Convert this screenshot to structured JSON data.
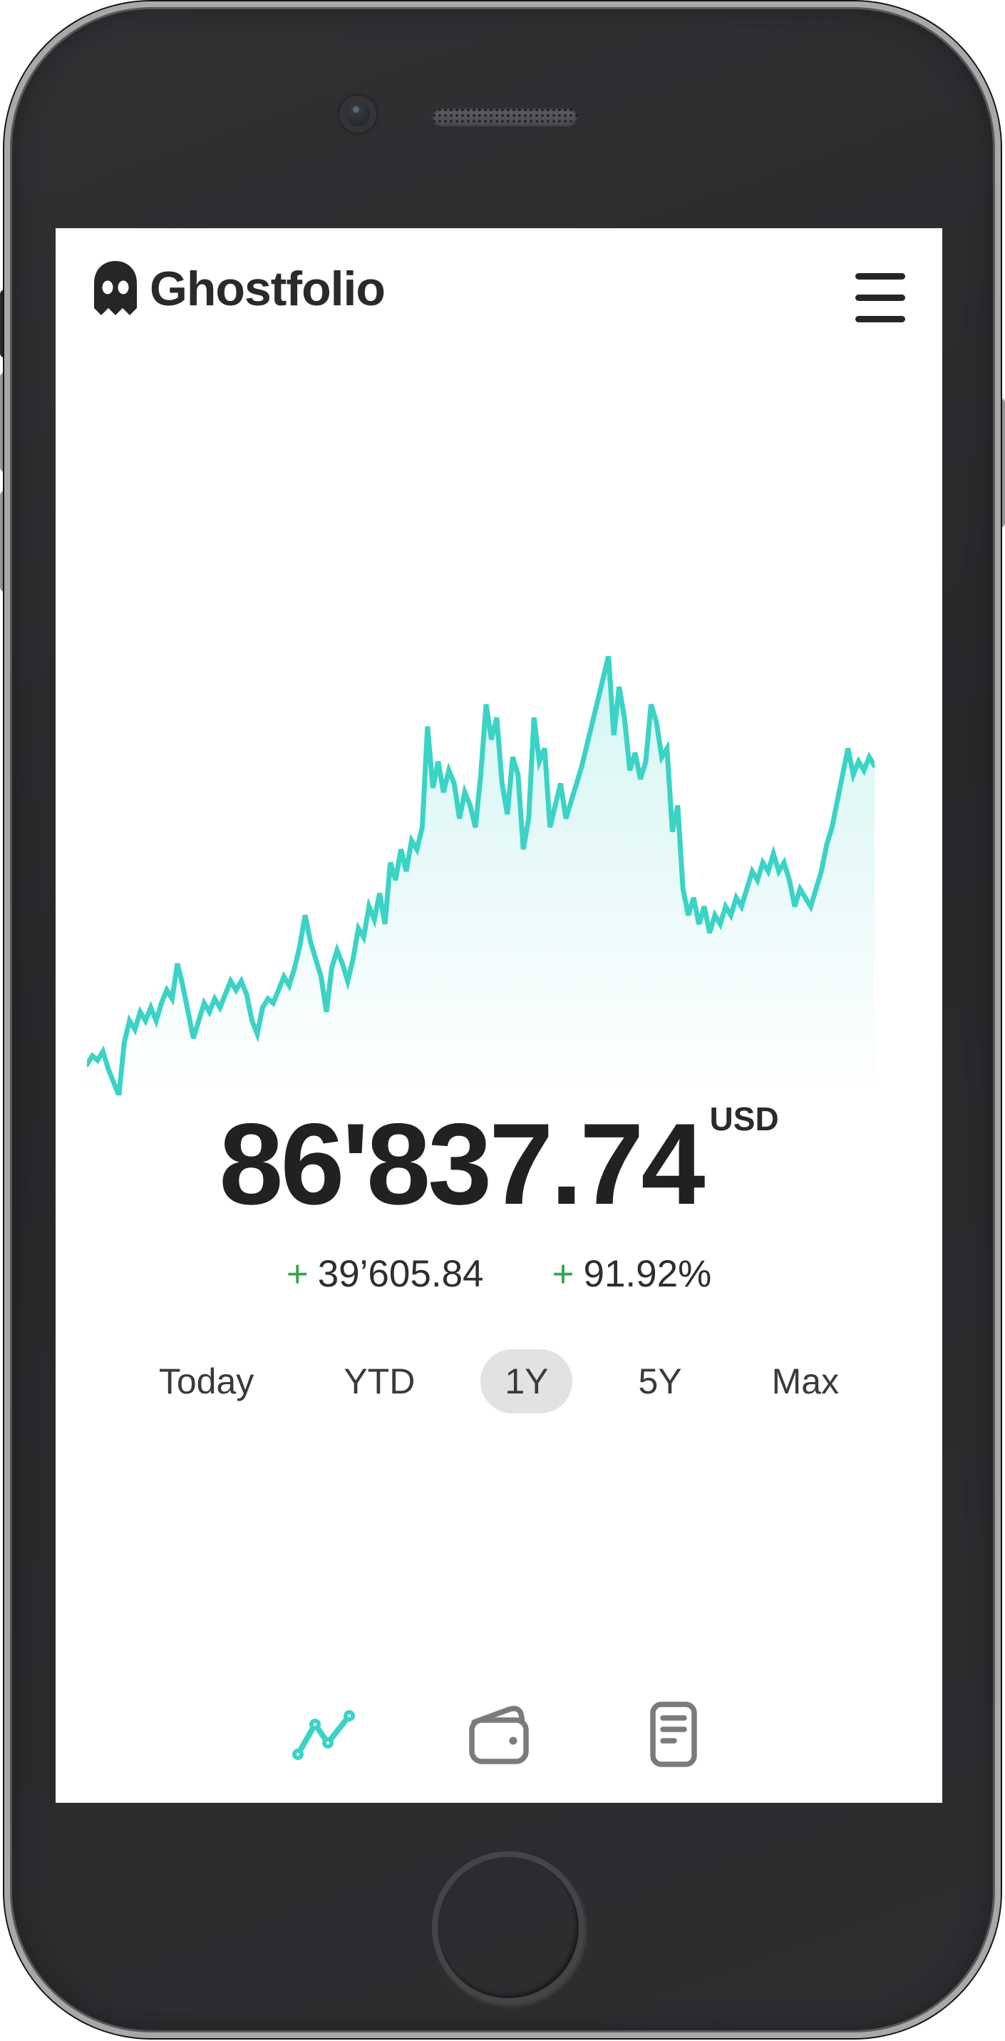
{
  "app": {
    "title": "Ghostfolio"
  },
  "header": {
    "logo_icon": "ghost-icon",
    "menu_icon": "hamburger-menu-icon"
  },
  "portfolio": {
    "value": "86'837.74",
    "currency": "USD",
    "change_absolute": {
      "sign": "+",
      "value": "39’605.84"
    },
    "change_percent": {
      "sign": "+",
      "value": "91.92%"
    }
  },
  "range_tabs": [
    {
      "label": "Today",
      "active": false
    },
    {
      "label": "YTD",
      "active": false
    },
    {
      "label": "1Y",
      "active": true
    },
    {
      "label": "5Y",
      "active": false
    },
    {
      "label": "Max",
      "active": false
    }
  ],
  "bottom_nav": [
    {
      "icon": "performance-line-chart-icon",
      "active": true
    },
    {
      "icon": "wallet-icon",
      "active": false
    },
    {
      "icon": "activities-document-icon",
      "active": false
    }
  ],
  "colors": {
    "accent_teal": "#3BD3C6",
    "positive_green": "#33A64D",
    "text_dark": "#212121",
    "tab_active_bg": "#E2E2E2",
    "nav_inactive_gray": "#7B7B7B",
    "chart_fill_top": "rgba(59,211,198,0.22)"
  },
  "chart_data": {
    "type": "area",
    "title": "",
    "description": "1Y portfolio performance sparkline; axes, gridlines and tick labels are hidden",
    "x_axis": "time (hidden)",
    "y_axis": "portfolio value (hidden)",
    "grid": false,
    "legend": false,
    "line_color": "#3BD3C6",
    "area_gradient": [
      "rgba(59,211,198,0.22)",
      "rgba(59,211,198,0)"
    ],
    "values_normalized_0_100": [
      7,
      9,
      8,
      10,
      6,
      3,
      0,
      12,
      17,
      15,
      19,
      17,
      20,
      17,
      21,
      24,
      22,
      30,
      25,
      19,
      13,
      17,
      21,
      19,
      22,
      20,
      23,
      26,
      24,
      26,
      23,
      17,
      14,
      20,
      22,
      21,
      24,
      27,
      25,
      29,
      34,
      41,
      35,
      31,
      27,
      19,
      29,
      33,
      30,
      26,
      31,
      38,
      36,
      43,
      40,
      46,
      39,
      53,
      49,
      56,
      51,
      58,
      56,
      61,
      84,
      70,
      76,
      69,
      74,
      71,
      63,
      69,
      66,
      61,
      73,
      89,
      81,
      86,
      71,
      64,
      77,
      73,
      56,
      63,
      86,
      76,
      79,
      61,
      66,
      71,
      63,
      67,
      71,
      75,
      80,
      85,
      90,
      95,
      100,
      82,
      93,
      86,
      74,
      78,
      72,
      76,
      89,
      85,
      77,
      79,
      60,
      66,
      47,
      41,
      45,
      39,
      43,
      37,
      41,
      39,
      43,
      41,
      45,
      43,
      47,
      51,
      49,
      53,
      51,
      55,
      51,
      53,
      49,
      43,
      47,
      45,
      43,
      47,
      51,
      57,
      61,
      67,
      73,
      79,
      73,
      76,
      74,
      77,
      75
    ]
  }
}
